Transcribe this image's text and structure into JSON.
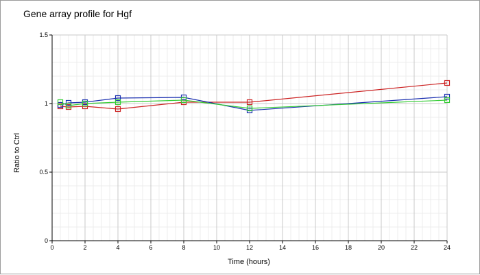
{
  "chart_data": {
    "type": "line",
    "title": "Gene array profile for Hgf",
    "xlabel": "Time (hours)",
    "ylabel": "Ratio to Ctrl",
    "xlim": [
      0,
      24
    ],
    "ylim": [
      0,
      1.5
    ],
    "x_ticks": [
      0,
      2,
      4,
      6,
      8,
      10,
      12,
      14,
      16,
      18,
      20,
      22,
      24
    ],
    "y_ticks": [
      0,
      0.5,
      1,
      1.5
    ],
    "y_tick_labels": [
      "0",
      "0.5",
      "1",
      "1.5"
    ],
    "grid": true,
    "marker": "square",
    "series": [
      {
        "color": "#cc2222",
        "x": [
          0.5,
          1,
          2,
          4,
          8,
          12,
          24
        ],
        "y": [
          0.98,
          0.975,
          0.98,
          0.96,
          1.01,
          1.01,
          1.15
        ]
      },
      {
        "color": "#1a2fb0",
        "x": [
          0.5,
          1,
          2,
          4,
          8,
          12,
          24
        ],
        "y": [
          0.99,
          1.005,
          1.01,
          1.04,
          1.045,
          0.95,
          1.05
        ]
      },
      {
        "color": "#33cc33",
        "x": [
          0.5,
          1,
          2,
          4,
          8,
          12,
          24
        ],
        "y": [
          1.01,
          0.985,
          1.0,
          1.01,
          1.025,
          0.965,
          1.025
        ]
      }
    ]
  }
}
